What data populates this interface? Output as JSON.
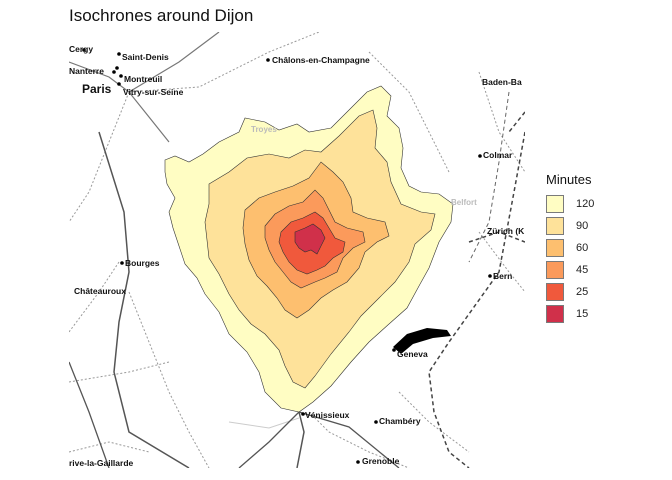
{
  "title": "Isochrones around Dijon",
  "legend": {
    "title": "Minutes",
    "items": [
      {
        "label": "120",
        "color": "#fffdc3"
      },
      {
        "label": "90",
        "color": "#fee29a"
      },
      {
        "label": "60",
        "color": "#fdbf6f"
      },
      {
        "label": "45",
        "color": "#fb9a5b"
      },
      {
        "label": "25",
        "color": "#f0593c"
      },
      {
        "label": "15",
        "color": "#d0304a"
      }
    ]
  },
  "cities": {
    "cergy": "Cergy",
    "saint_denis": "Saint-Denis",
    "nanterre": "Nanterre",
    "montreuil": "Montreuil",
    "paris": "Paris",
    "vitry": "Vitry-sur-Seine",
    "chalons": "Châlons-en-Champagne",
    "baden": "Baden-Ba",
    "troyes": "Troyes",
    "colmar": "Colmar",
    "belfort": "Belfort",
    "zurich": "Zürich (K",
    "bourges": "Bourges",
    "chateauroux": "Châteauroux",
    "bern": "Bern",
    "geneva": "Geneva",
    "venissieux": "Vénissieux",
    "chambery": "Chambéry",
    "brive": "rive-la-Gaillarde",
    "grenoble": "Grenoble"
  }
}
